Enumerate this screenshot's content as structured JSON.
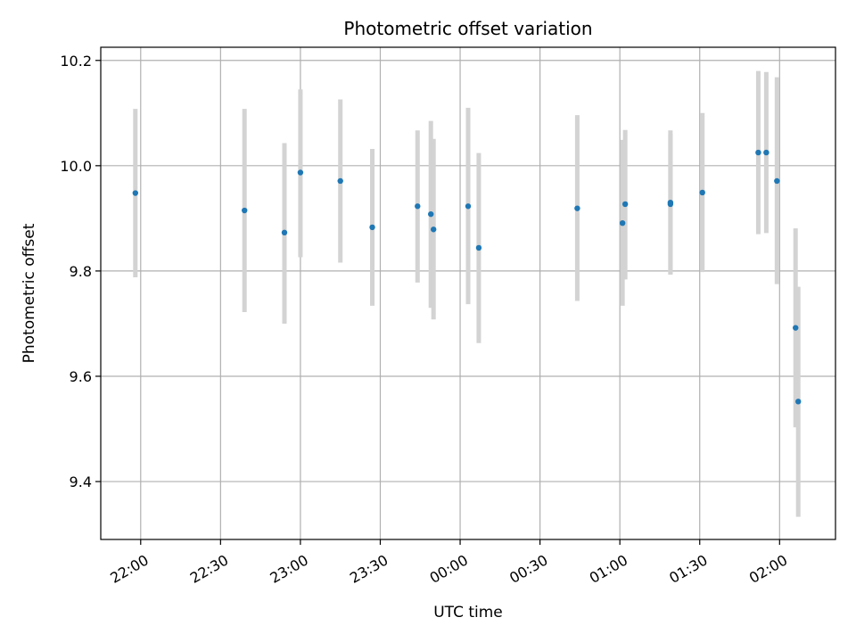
{
  "colors": {
    "point": "#1f77b4",
    "errorbar": "#d3d3d3",
    "grid": "#b0b0b0",
    "axes": "#000000"
  },
  "chart_data": {
    "type": "scatter",
    "title": "Photometric offset variation",
    "xlabel": "UTC time",
    "ylabel": "Photometric offset",
    "grid": true,
    "xlim": [
      "21:45",
      "02:21"
    ],
    "ylim": [
      9.29,
      10.225
    ],
    "x_ticks": [
      "22:00",
      "22:30",
      "23:00",
      "23:30",
      "00:00",
      "00:30",
      "01:00",
      "01:30",
      "02:00"
    ],
    "y_ticks": [
      9.4,
      9.6,
      9.8,
      10.0,
      10.2
    ],
    "y_tick_labels": [
      "9.4",
      "9.6",
      "9.8",
      "10.0",
      "10.2"
    ],
    "points": [
      {
        "x": "21:58",
        "y": 9.948,
        "ylow": 9.788,
        "yhigh": 10.108
      },
      {
        "x": "22:39",
        "y": 9.915,
        "ylow": 9.722,
        "yhigh": 10.108
      },
      {
        "x": "22:54",
        "y": 9.873,
        "ylow": 9.7,
        "yhigh": 10.043
      },
      {
        "x": "23:00",
        "y": 9.987,
        "ylow": 9.826,
        "yhigh": 10.145
      },
      {
        "x": "23:15",
        "y": 9.971,
        "ylow": 9.816,
        "yhigh": 10.126
      },
      {
        "x": "23:27",
        "y": 9.883,
        "ylow": 9.734,
        "yhigh": 10.032
      },
      {
        "x": "23:44",
        "y": 9.923,
        "ylow": 9.778,
        "yhigh": 10.067
      },
      {
        "x": "23:49",
        "y": 9.908,
        "ylow": 9.73,
        "yhigh": 10.085
      },
      {
        "x": "23:50",
        "y": 9.879,
        "ylow": 9.708,
        "yhigh": 10.051
      },
      {
        "x": "00:03",
        "y": 9.923,
        "ylow": 9.737,
        "yhigh": 10.11
      },
      {
        "x": "00:07",
        "y": 9.844,
        "ylow": 9.663,
        "yhigh": 10.024
      },
      {
        "x": "00:44",
        "y": 9.919,
        "ylow": 9.743,
        "yhigh": 10.096
      },
      {
        "x": "01:01",
        "y": 9.891,
        "ylow": 9.734,
        "yhigh": 10.049
      },
      {
        "x": "01:02",
        "y": 9.927,
        "ylow": 9.784,
        "yhigh": 10.068
      },
      {
        "x": "01:19",
        "y": 9.93,
        "ylow": 9.793,
        "yhigh": 10.067
      },
      {
        "x": "01:19",
        "y": 9.927,
        "ylow": 9.795,
        "yhigh": 10.06
      },
      {
        "x": "01:31",
        "y": 9.949,
        "ylow": 9.798,
        "yhigh": 10.1
      },
      {
        "x": "01:52",
        "y": 10.025,
        "ylow": 9.87,
        "yhigh": 10.18
      },
      {
        "x": "01:55",
        "y": 10.025,
        "ylow": 9.872,
        "yhigh": 10.178
      },
      {
        "x": "01:59",
        "y": 9.971,
        "ylow": 9.775,
        "yhigh": 10.168
      },
      {
        "x": "02:06",
        "y": 9.692,
        "ylow": 9.503,
        "yhigh": 9.881
      },
      {
        "x": "02:07",
        "y": 9.552,
        "ylow": 9.333,
        "yhigh": 9.77
      }
    ]
  }
}
